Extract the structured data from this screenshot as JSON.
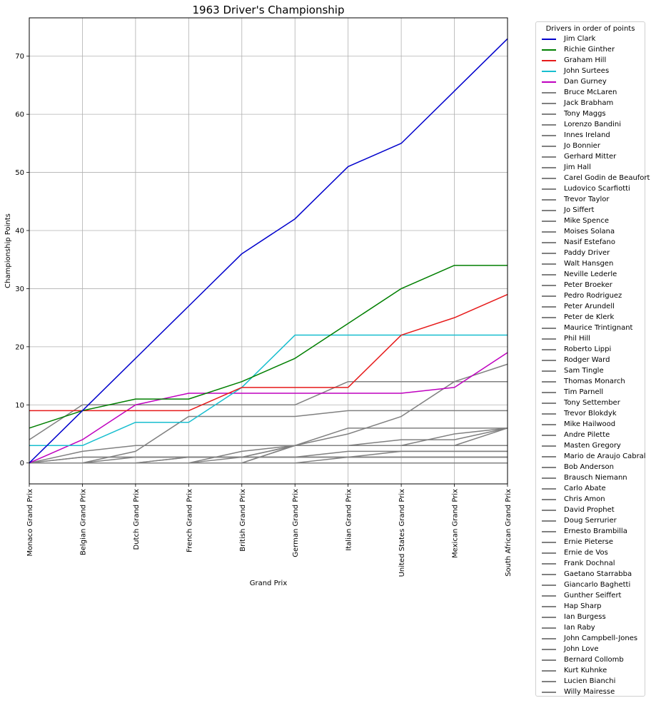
{
  "chart_data": {
    "type": "line",
    "title": "1963 Driver's Championship",
    "xlabel": "Grand Prix",
    "ylabel": "Championship Points",
    "ylim": [
      -3.6,
      76.6
    ],
    "yticks": [
      0,
      10,
      20,
      30,
      40,
      50,
      60,
      70
    ],
    "grid": true,
    "legend_title": "Drivers in order of points",
    "legend_placement": "outside-right",
    "categories": [
      "Monaco Grand Prix",
      "Belgian Grand Prix",
      "Dutch Grand Prix",
      "French Grand Prix",
      "British Grand Prix",
      "German Grand Prix",
      "Italian Grand Prix",
      "United States Grand Prix",
      "Mexican Grand Prix",
      "South African Grand Prix"
    ],
    "series": [
      {
        "name": "Jim Clark",
        "color": "#0000cc",
        "values": [
          0,
          9,
          18,
          27,
          36,
          42,
          51,
          55,
          64,
          73
        ]
      },
      {
        "name": "Richie Ginther",
        "color": "#007f00",
        "values": [
          6,
          9,
          11,
          11,
          14,
          18,
          24,
          30,
          34,
          34
        ]
      },
      {
        "name": "Graham Hill",
        "color": "#e61a1a",
        "values": [
          9,
          9,
          9,
          9,
          13,
          13,
          13,
          22,
          25,
          29
        ]
      },
      {
        "name": "John Surtees",
        "color": "#17becf",
        "values": [
          3,
          3,
          7,
          7,
          13,
          22,
          22,
          22,
          22,
          22
        ]
      },
      {
        "name": "Dan Gurney",
        "color": "#bf00bf",
        "values": [
          0,
          4,
          10,
          12,
          12,
          12,
          12,
          12,
          13,
          19
        ]
      },
      {
        "name": "Bruce McLaren",
        "color": "#808080",
        "values": [
          4,
          10,
          10,
          10,
          10,
          10,
          14,
          14,
          14,
          17
        ]
      },
      {
        "name": "Jack Brabham",
        "color": "#808080",
        "values": [
          0,
          0,
          0,
          0,
          0,
          3,
          5,
          8,
          14,
          14
        ]
      },
      {
        "name": "Tony Maggs",
        "color": "#808080",
        "values": [
          0,
          0,
          2,
          8,
          8,
          8,
          9,
          9,
          9,
          9
        ]
      },
      {
        "name": "Lorenzo Bandini",
        "color": "#808080",
        "values": [
          0,
          0,
          0,
          0,
          2,
          3,
          6,
          6,
          6,
          6
        ]
      },
      {
        "name": "Innes Ireland",
        "color": "#808080",
        "values": [
          0,
          2,
          3,
          3,
          3,
          3,
          3,
          3,
          3,
          6
        ]
      },
      {
        "name": "Jo Bonnier",
        "color": "#808080",
        "values": [
          0,
          0,
          0,
          0,
          0,
          3,
          3,
          4,
          4,
          6
        ]
      },
      {
        "name": "Gerhard Mitter",
        "color": "#808080",
        "values": [
          0,
          0,
          0,
          0,
          1,
          3,
          3,
          3,
          5,
          6
        ]
      },
      {
        "name": "Jim Hall",
        "color": "#808080",
        "values": [
          0,
          0,
          1,
          1,
          1,
          3,
          3,
          3,
          3,
          3
        ]
      },
      {
        "name": "Carel Godin de Beaufort",
        "color": "#808080",
        "values": [
          0,
          1,
          1,
          1,
          1,
          1,
          1,
          2,
          2,
          2
        ]
      },
      {
        "name": "Ludovico Scarfiotti",
        "color": "#808080",
        "values": [
          0,
          0,
          0,
          1,
          1,
          1,
          2,
          2,
          2,
          2
        ]
      },
      {
        "name": "Trevor Taylor",
        "color": "#808080",
        "values": [
          0,
          1,
          1,
          1,
          1,
          1,
          1,
          1,
          1,
          1
        ]
      },
      {
        "name": "Jo Siffert",
        "color": "#808080",
        "values": [
          0,
          0,
          0,
          1,
          1,
          1,
          1,
          1,
          1,
          1
        ]
      },
      {
        "name": "Mike Spence",
        "color": "#808080",
        "values": [
          0,
          0,
          0,
          0,
          0,
          0,
          1,
          1,
          1,
          1
        ]
      },
      {
        "name": "Moises Solana",
        "color": "#808080",
        "values": [
          0,
          0,
          0,
          0,
          0,
          0,
          0,
          0,
          0,
          0
        ]
      },
      {
        "name": "Nasif Estefano",
        "color": "#808080",
        "values": [
          0,
          0,
          0,
          0,
          0,
          0,
          0,
          0,
          0,
          0
        ]
      },
      {
        "name": "Paddy Driver",
        "color": "#808080",
        "values": [
          0,
          0,
          0,
          0,
          0,
          0,
          0,
          0,
          0,
          0
        ]
      },
      {
        "name": "Walt Hansgen",
        "color": "#808080",
        "values": [
          0,
          0,
          0,
          0,
          0,
          0,
          0,
          0,
          0,
          0
        ]
      },
      {
        "name": "Neville Lederle",
        "color": "#808080",
        "values": [
          0,
          0,
          0,
          0,
          0,
          0,
          0,
          0,
          0,
          0
        ]
      },
      {
        "name": "Peter Broeker",
        "color": "#808080",
        "values": [
          0,
          0,
          0,
          0,
          0,
          0,
          0,
          0,
          0,
          0
        ]
      },
      {
        "name": "Pedro Rodriguez",
        "color": "#808080",
        "values": [
          0,
          0,
          0,
          0,
          0,
          0,
          0,
          0,
          0,
          0
        ]
      },
      {
        "name": "Peter Arundell",
        "color": "#808080",
        "values": [
          0,
          0,
          0,
          0,
          0,
          0,
          0,
          0,
          0,
          0
        ]
      },
      {
        "name": "Peter de Klerk",
        "color": "#808080",
        "values": [
          0,
          0,
          0,
          0,
          0,
          0,
          0,
          0,
          0,
          0
        ]
      },
      {
        "name": "Maurice Trintignant",
        "color": "#808080",
        "values": [
          0,
          0,
          0,
          0,
          0,
          0,
          0,
          0,
          0,
          0
        ]
      },
      {
        "name": "Phil Hill",
        "color": "#808080",
        "values": [
          0,
          0,
          0,
          0,
          0,
          0,
          0,
          0,
          0,
          0
        ]
      },
      {
        "name": "Roberto Lippi",
        "color": "#808080",
        "values": [
          0,
          0,
          0,
          0,
          0,
          0,
          0,
          0,
          0,
          0
        ]
      },
      {
        "name": "Rodger Ward",
        "color": "#808080",
        "values": [
          0,
          0,
          0,
          0,
          0,
          0,
          0,
          0,
          0,
          0
        ]
      },
      {
        "name": "Sam Tingle",
        "color": "#808080",
        "values": [
          0,
          0,
          0,
          0,
          0,
          0,
          0,
          0,
          0,
          0
        ]
      },
      {
        "name": "Thomas Monarch",
        "color": "#808080",
        "values": [
          0,
          0,
          0,
          0,
          0,
          0,
          0,
          0,
          0,
          0
        ]
      },
      {
        "name": "Tim Parnell",
        "color": "#808080",
        "values": [
          0,
          0,
          0,
          0,
          0,
          0,
          0,
          0,
          0,
          0
        ]
      },
      {
        "name": "Tony Settember",
        "color": "#808080",
        "values": [
          0,
          0,
          0,
          0,
          0,
          0,
          0,
          0,
          0,
          0
        ]
      },
      {
        "name": "Trevor Blokdyk",
        "color": "#808080",
        "values": [
          0,
          0,
          0,
          0,
          0,
          0,
          0,
          0,
          0,
          0
        ]
      },
      {
        "name": "Mike Hailwood",
        "color": "#808080",
        "values": [
          0,
          0,
          0,
          0,
          0,
          0,
          0,
          0,
          0,
          0
        ]
      },
      {
        "name": "Andre Pilette",
        "color": "#808080",
        "values": [
          0,
          0,
          0,
          0,
          0,
          0,
          0,
          0,
          0,
          0
        ]
      },
      {
        "name": "Masten Gregory",
        "color": "#808080",
        "values": [
          0,
          0,
          0,
          0,
          0,
          0,
          0,
          0,
          0,
          0
        ]
      },
      {
        "name": "Mario de Araujo Cabral",
        "color": "#808080",
        "values": [
          0,
          0,
          0,
          0,
          0,
          0,
          0,
          0,
          0,
          0
        ]
      },
      {
        "name": "Bob Anderson",
        "color": "#808080",
        "values": [
          0,
          0,
          0,
          0,
          0,
          0,
          0,
          0,
          0,
          0
        ]
      },
      {
        "name": "Brausch Niemann",
        "color": "#808080",
        "values": [
          0,
          0,
          0,
          0,
          0,
          0,
          0,
          0,
          0,
          0
        ]
      },
      {
        "name": "Carlo Abate",
        "color": "#808080",
        "values": [
          0,
          0,
          0,
          0,
          0,
          0,
          0,
          0,
          0,
          0
        ]
      },
      {
        "name": "Chris Amon",
        "color": "#808080",
        "values": [
          0,
          0,
          0,
          0,
          0,
          0,
          0,
          0,
          0,
          0
        ]
      },
      {
        "name": "David Prophet",
        "color": "#808080",
        "values": [
          0,
          0,
          0,
          0,
          0,
          0,
          0,
          0,
          0,
          0
        ]
      },
      {
        "name": "Doug Serrurier",
        "color": "#808080",
        "values": [
          0,
          0,
          0,
          0,
          0,
          0,
          0,
          0,
          0,
          0
        ]
      },
      {
        "name": "Ernesto Brambilla",
        "color": "#808080",
        "values": [
          0,
          0,
          0,
          0,
          0,
          0,
          0,
          0,
          0,
          0
        ]
      },
      {
        "name": "Ernie Pieterse",
        "color": "#808080",
        "values": [
          0,
          0,
          0,
          0,
          0,
          0,
          0,
          0,
          0,
          0
        ]
      },
      {
        "name": "Ernie de Vos",
        "color": "#808080",
        "values": [
          0,
          0,
          0,
          0,
          0,
          0,
          0,
          0,
          0,
          0
        ]
      },
      {
        "name": "Frank Dochnal",
        "color": "#808080",
        "values": [
          0,
          0,
          0,
          0,
          0,
          0,
          0,
          0,
          0,
          0
        ]
      },
      {
        "name": "Gaetano Starrabba",
        "color": "#808080",
        "values": [
          0,
          0,
          0,
          0,
          0,
          0,
          0,
          0,
          0,
          0
        ]
      },
      {
        "name": "Giancarlo Baghetti",
        "color": "#808080",
        "values": [
          0,
          0,
          0,
          0,
          0,
          0,
          0,
          0,
          0,
          0
        ]
      },
      {
        "name": "Gunther Seiffert",
        "color": "#808080",
        "values": [
          0,
          0,
          0,
          0,
          0,
          0,
          0,
          0,
          0,
          0
        ]
      },
      {
        "name": "Hap Sharp",
        "color": "#808080",
        "values": [
          0,
          0,
          0,
          0,
          0,
          0,
          0,
          0,
          0,
          0
        ]
      },
      {
        "name": "Ian Burgess",
        "color": "#808080",
        "values": [
          0,
          0,
          0,
          0,
          0,
          0,
          0,
          0,
          0,
          0
        ]
      },
      {
        "name": "Ian Raby",
        "color": "#808080",
        "values": [
          0,
          0,
          0,
          0,
          0,
          0,
          0,
          0,
          0,
          0
        ]
      },
      {
        "name": "John Campbell-Jones",
        "color": "#808080",
        "values": [
          0,
          0,
          0,
          0,
          0,
          0,
          0,
          0,
          0,
          0
        ]
      },
      {
        "name": "John Love",
        "color": "#808080",
        "values": [
          0,
          0,
          0,
          0,
          0,
          0,
          0,
          0,
          0,
          0
        ]
      },
      {
        "name": "Bernard Collomb",
        "color": "#808080",
        "values": [
          0,
          0,
          0,
          0,
          0,
          0,
          0,
          0,
          0,
          0
        ]
      },
      {
        "name": "Kurt Kuhnke",
        "color": "#808080",
        "values": [
          0,
          0,
          0,
          0,
          0,
          0,
          0,
          0,
          0,
          0
        ]
      },
      {
        "name": "Lucien Bianchi",
        "color": "#808080",
        "values": [
          0,
          0,
          0,
          0,
          0,
          0,
          0,
          0,
          0,
          0
        ]
      },
      {
        "name": "Willy Mairesse",
        "color": "#808080",
        "values": [
          0,
          0,
          0,
          0,
          0,
          0,
          0,
          0,
          0,
          0
        ]
      }
    ]
  }
}
